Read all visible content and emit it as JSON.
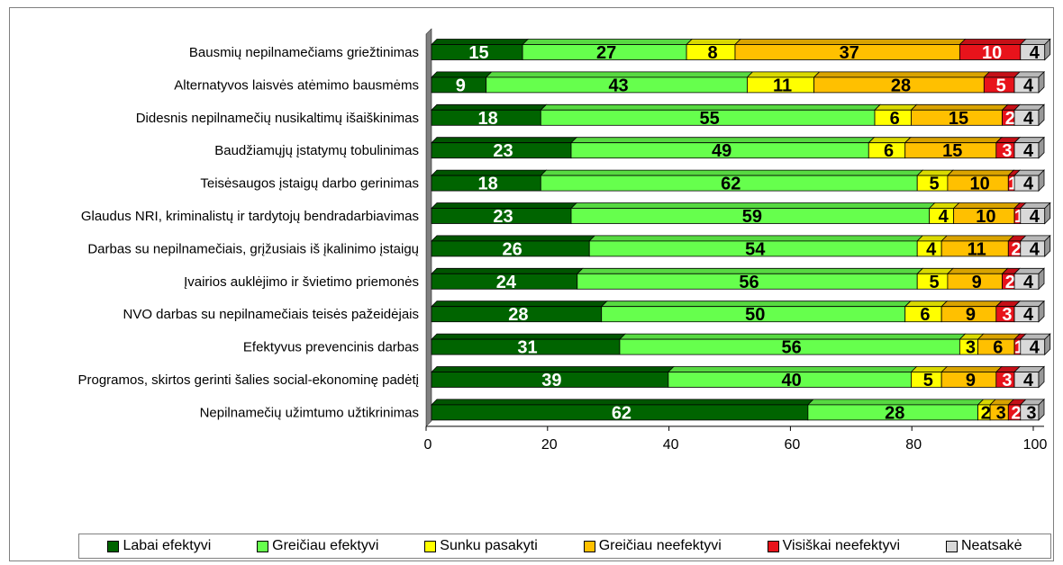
{
  "chart_data": {
    "type": "bar",
    "orientation": "horizontal",
    "stacked": true,
    "three_d": true,
    "categories": [
      "Bausmių nepilnamečiams griežtinimas",
      "Alternatyvos laisvės atėmimo bausmėms",
      "Didesnis nepilnamečių nusikaltimų išaiškinimas",
      "Baudžiamųjų įstatymų tobulinimas",
      "Teisėsaugos įstaigų darbo gerinimas",
      "Glaudus NRI, kriminalistų ir tardytojų bendradarbiavimas",
      "Darbas su nepilnamečiais, grįžusiais iš įkalinimo įstaigų",
      "Įvairios auklėjimo ir švietimo priemonės",
      "NVO darbas su nepilnamečiais teisės pažeidėjais",
      "Efektyvus prevencinis darbas",
      "Programos, skirtos gerinti šalies social-ekonominę padėtį",
      "Nepilnamečių užimtumo užtikrinimas"
    ],
    "series": [
      {
        "name": "Labai efektyvi",
        "color": "#006400",
        "label_color": "#ffffff",
        "values": [
          15,
          9,
          18,
          23,
          18,
          23,
          26,
          24,
          28,
          31,
          39,
          62
        ]
      },
      {
        "name": "Greičiau efektyvi",
        "color": "#66ff4d",
        "label_color": "#000000",
        "values": [
          27,
          43,
          55,
          49,
          62,
          59,
          54,
          56,
          50,
          56,
          40,
          28
        ]
      },
      {
        "name": "Sunku pasakyti",
        "color": "#ffff00",
        "label_color": "#000000",
        "values": [
          8,
          11,
          6,
          6,
          5,
          4,
          4,
          5,
          6,
          3,
          5,
          2
        ]
      },
      {
        "name": "Greičiau neefektyvi",
        "color": "#ffc000",
        "label_color": "#000000",
        "values": [
          37,
          28,
          15,
          15,
          10,
          10,
          11,
          9,
          9,
          6,
          9,
          3
        ]
      },
      {
        "name": "Visiškai neefektyvi",
        "color": "#e8131b",
        "label_color": "#ffffff",
        "values": [
          10,
          5,
          2,
          3,
          1,
          1,
          2,
          2,
          3,
          1,
          3,
          2
        ]
      },
      {
        "name": "Neatsakė",
        "color": "#d9d9d9",
        "label_color": "#000000",
        "values": [
          4,
          4,
          4,
          4,
          4,
          4,
          4,
          4,
          4,
          4,
          4,
          3
        ]
      }
    ],
    "xlim": [
      0,
      100
    ],
    "xticks": [
      0,
      20,
      40,
      60,
      80,
      100
    ],
    "title": "",
    "xlabel": "",
    "ylabel": "",
    "legend_position": "bottom",
    "grid": false
  }
}
